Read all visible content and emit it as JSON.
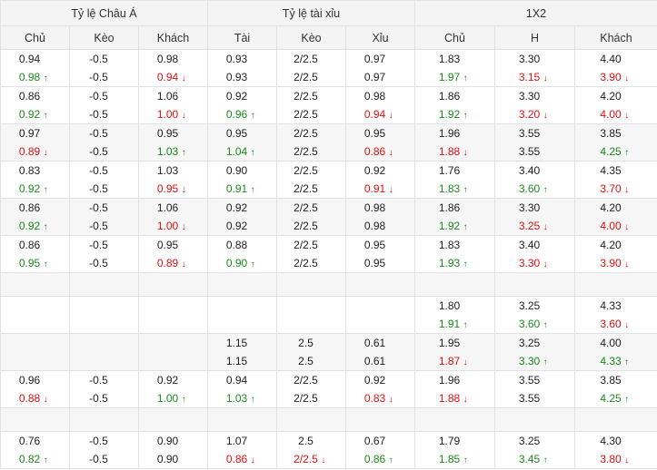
{
  "header": {
    "groups": [
      "Tỷ lệ Châu Á",
      "Tỷ lệ tài xỉu",
      "1X2"
    ],
    "columns": [
      "Chủ",
      "Kèo",
      "Khách",
      "Tài",
      "Kèo",
      "Xỉu",
      "Chủ",
      "H",
      "Khách"
    ]
  },
  "colors": {
    "up": "#1a8a1a",
    "down": "#e01010",
    "header_bg": "#f3f3f3",
    "shade_bg": "#f6f6f6"
  },
  "icons": {
    "up": "arrow-up-icon",
    "down": "arrow-down-icon"
  },
  "rows": [
    {
      "shade": false,
      "cells": [
        [
          "0.94",
          "0.98",
          "u"
        ],
        [
          "-0.5",
          "-0.5",
          ""
        ],
        [
          "0.98",
          "0.94",
          "d"
        ],
        [
          "0.93",
          "0.93",
          ""
        ],
        [
          "2/2.5",
          "2/2.5",
          ""
        ],
        [
          "0.97",
          "0.97",
          ""
        ],
        [
          "1.83",
          "1.97",
          "u"
        ],
        [
          "3.30",
          "3.15",
          "d"
        ],
        [
          "4.40",
          "3.90",
          "d"
        ]
      ]
    },
    {
      "shade": false,
      "cells": [
        [
          "0.86",
          "0.92",
          "u"
        ],
        [
          "-0.5",
          "-0.5",
          ""
        ],
        [
          "1.06",
          "1.00",
          "d"
        ],
        [
          "0.92",
          "0.96",
          "u"
        ],
        [
          "2/2.5",
          "2/2.5",
          ""
        ],
        [
          "0.98",
          "0.94",
          "d"
        ],
        [
          "1.86",
          "1.92",
          "u"
        ],
        [
          "3.30",
          "3.20",
          "d"
        ],
        [
          "4.20",
          "4.00",
          "d"
        ]
      ]
    },
    {
      "shade": true,
      "cells": [
        [
          "0.97",
          "0.89",
          "d"
        ],
        [
          "-0.5",
          "-0.5",
          ""
        ],
        [
          "0.95",
          "1.03",
          "u"
        ],
        [
          "0.95",
          "1.04",
          "u"
        ],
        [
          "2/2.5",
          "2/2.5",
          ""
        ],
        [
          "0.95",
          "0.86",
          "d"
        ],
        [
          "1.96",
          "1.88",
          "d"
        ],
        [
          "3.55",
          "3.55",
          ""
        ],
        [
          "3.85",
          "4.25",
          "u"
        ]
      ]
    },
    {
      "shade": false,
      "cells": [
        [
          "0.83",
          "0.92",
          "u"
        ],
        [
          "-0.5",
          "-0.5",
          ""
        ],
        [
          "1.03",
          "0.95",
          "d"
        ],
        [
          "0.90",
          "0.91",
          "u"
        ],
        [
          "2/2.5",
          "2/2.5",
          ""
        ],
        [
          "0.92",
          "0.91",
          "d"
        ],
        [
          "1.76",
          "1.83",
          "u"
        ],
        [
          "3.40",
          "3.60",
          "u"
        ],
        [
          "4.35",
          "3.70",
          "d"
        ]
      ]
    },
    {
      "shade": true,
      "cells": [
        [
          "0.86",
          "0.92",
          "u"
        ],
        [
          "-0.5",
          "-0.5",
          ""
        ],
        [
          "1.06",
          "1.00",
          "d"
        ],
        [
          "0.92",
          "0.92",
          ""
        ],
        [
          "2/2.5",
          "2/2.5",
          ""
        ],
        [
          "0.98",
          "0.98",
          ""
        ],
        [
          "1.86",
          "1.92",
          "u"
        ],
        [
          "3.30",
          "3.25",
          "d"
        ],
        [
          "4.20",
          "4.00",
          "d"
        ]
      ]
    },
    {
      "shade": false,
      "cells": [
        [
          "0.86",
          "0.95",
          "u"
        ],
        [
          "-0.5",
          "-0.5",
          ""
        ],
        [
          "0.95",
          "0.89",
          "d"
        ],
        [
          "0.88",
          "0.90",
          "u"
        ],
        [
          "2/2.5",
          "2/2.5",
          ""
        ],
        [
          "0.95",
          "0.95",
          ""
        ],
        [
          "1.83",
          "1.93",
          "u"
        ],
        [
          "3.40",
          "3.30",
          "d"
        ],
        [
          "4.20",
          "3.90",
          "d"
        ]
      ]
    },
    {
      "spacer": true,
      "shade": true
    },
    {
      "shade": false,
      "cells": [
        [
          "",
          ""
        ],
        [
          "",
          ""
        ],
        [
          "",
          ""
        ],
        [
          "",
          ""
        ],
        [
          "",
          ""
        ],
        [
          "",
          ""
        ],
        [
          "1.80",
          "1.91",
          "u"
        ],
        [
          "3.25",
          "3.60",
          "u"
        ],
        [
          "4.33",
          "3.60",
          "d"
        ]
      ]
    },
    {
      "shade": true,
      "cells": [
        [
          "",
          ""
        ],
        [
          "",
          ""
        ],
        [
          "",
          ""
        ],
        [
          "1.15",
          "1.15",
          ""
        ],
        [
          "2.5",
          "2.5",
          ""
        ],
        [
          "0.61",
          "0.61",
          ""
        ],
        [
          "1.95",
          "1.87",
          "d"
        ],
        [
          "3.25",
          "3.30",
          "u"
        ],
        [
          "4.00",
          "4.33",
          "u"
        ]
      ]
    },
    {
      "shade": false,
      "cells": [
        [
          "0.96",
          "0.88",
          "d"
        ],
        [
          "-0.5",
          "-0.5",
          ""
        ],
        [
          "0.92",
          "1.00",
          "u"
        ],
        [
          "0.94",
          "1.03",
          "u"
        ],
        [
          "2/2.5",
          "2/2.5",
          ""
        ],
        [
          "0.92",
          "0.83",
          "d"
        ],
        [
          "1.96",
          "1.88",
          "d"
        ],
        [
          "3.55",
          "3.55",
          ""
        ],
        [
          "3.85",
          "4.25",
          "u"
        ]
      ]
    },
    {
      "spacer": true,
      "shade": true
    },
    {
      "shade": false,
      "cells": [
        [
          "0.76",
          "0.82",
          "u"
        ],
        [
          "-0.5",
          "-0.5",
          ""
        ],
        [
          "0.90",
          "0.90",
          ""
        ],
        [
          "1.07",
          "0.86",
          "d"
        ],
        [
          "2.5",
          "2/2.5",
          "d"
        ],
        [
          "0.67",
          "0.86",
          "u"
        ],
        [
          "1.79",
          "1.85",
          "u"
        ],
        [
          "3.25",
          "3.45",
          "u"
        ],
        [
          "4.30",
          "3.80",
          "d"
        ]
      ]
    }
  ]
}
